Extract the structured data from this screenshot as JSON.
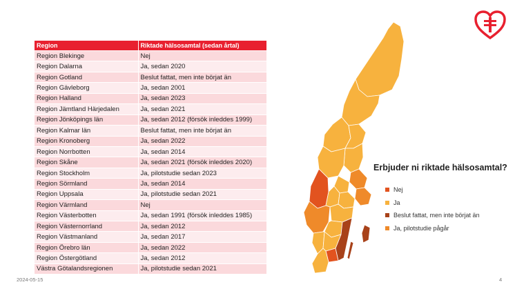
{
  "table": {
    "headers": [
      "Region",
      "Riktade hälsosamtal (sedan årtal)"
    ],
    "rows": [
      [
        "Region Blekinge",
        "Nej"
      ],
      [
        "Region Dalarna",
        "Ja, sedan 2020"
      ],
      [
        "Region Gotland",
        "Beslut fattat, men inte börjat än"
      ],
      [
        "Region Gävleborg",
        "Ja, sedan 2001"
      ],
      [
        "Region Halland",
        "Ja, sedan 2023"
      ],
      [
        "Region Jämtland Härjedalen",
        "Ja, sedan 2021"
      ],
      [
        "Region Jönköpings län",
        "Ja, sedan 2012 (försök inleddes 1999)"
      ],
      [
        "Region Kalmar län",
        "Beslut fattat, men inte börjat än"
      ],
      [
        "Region Kronoberg",
        "Ja, sedan 2022"
      ],
      [
        "Region Norrbotten",
        "Ja, sedan 2014"
      ],
      [
        "Region Skåne",
        "Ja, sedan 2021 (försök inleddes 2020)"
      ],
      [
        "Region Stockholm",
        "Ja, pilotstudie sedan 2023"
      ],
      [
        "Region Sörmland",
        "Ja, sedan 2014"
      ],
      [
        "Region Uppsala",
        "Ja, pilotstudie sedan 2021"
      ],
      [
        "Region Värmland",
        "Nej"
      ],
      [
        "Region Västerbotten",
        "Ja, sedan 1991 (försök inleddes 1985)"
      ],
      [
        "Region Västernorrland",
        "Ja, sedan 2012"
      ],
      [
        "Region Västmanland",
        "Ja, sedan 2017"
      ],
      [
        "Region Örebro län",
        "Ja, sedan 2022"
      ],
      [
        "Region Östergötland",
        "Ja, sedan 2012"
      ],
      [
        "Västra Götalandsregionen",
        "Ja, pilotstudie sedan 2021"
      ]
    ]
  },
  "legend": {
    "title": "Erbjuder ni riktade hälsosamtal?",
    "items": [
      {
        "label": "Nej",
        "color": "#e2531f"
      },
      {
        "label": "Ja",
        "color": "#f7b23e"
      },
      {
        "label": "Beslut fattat, men inte börjat än",
        "color": "#a8421a"
      },
      {
        "label": "Ja, pilotstudie pågår",
        "color": "#ef8a2a"
      }
    ]
  },
  "colors": {
    "header_red": "#e8202f",
    "row_odd": "#fbd9dc",
    "row_even": "#fdecee",
    "map_yes": "#f7b23e"
  },
  "footer": {
    "date": "2024-05-15",
    "page": "4"
  }
}
